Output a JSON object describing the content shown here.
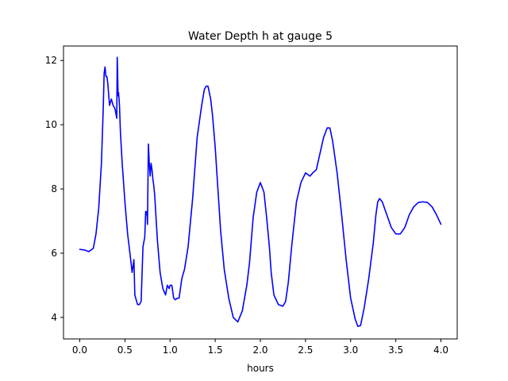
{
  "chart_data": {
    "type": "line",
    "title": "Water Depth h at gauge 5",
    "xlabel": "hours",
    "ylabel": "",
    "xlim": [
      -0.18,
      4.18
    ],
    "ylim": [
      3.33,
      12.45
    ],
    "xticks": [
      "0.0",
      "0.5",
      "1.0",
      "1.5",
      "2.0",
      "2.5",
      "3.0",
      "3.5",
      "4.0"
    ],
    "yticks": [
      "4",
      "6",
      "8",
      "10",
      "12"
    ],
    "grid": false,
    "legend": "none",
    "series": [
      {
        "color": "#0000ff",
        "x": [
          0.0,
          0.05,
          0.1,
          0.15,
          0.18,
          0.21,
          0.24,
          0.26,
          0.27,
          0.28,
          0.29,
          0.3,
          0.31,
          0.33,
          0.35,
          0.37,
          0.39,
          0.41,
          0.415,
          0.42,
          0.425,
          0.43,
          0.44,
          0.45,
          0.47,
          0.5,
          0.53,
          0.56,
          0.58,
          0.6,
          0.61,
          0.62,
          0.63,
          0.64,
          0.66,
          0.68,
          0.7,
          0.72,
          0.73,
          0.74,
          0.745,
          0.75,
          0.76,
          0.77,
          0.78,
          0.79,
          0.8,
          0.81,
          0.82,
          0.83,
          0.86,
          0.89,
          0.92,
          0.95,
          0.97,
          0.99,
          1.0,
          1.02,
          1.04,
          1.06,
          1.08,
          1.1,
          1.13,
          1.16,
          1.2,
          1.25,
          1.3,
          1.35,
          1.38,
          1.4,
          1.42,
          1.45,
          1.47,
          1.5,
          1.53,
          1.56,
          1.6,
          1.65,
          1.7,
          1.75,
          1.8,
          1.85,
          1.88,
          1.92,
          1.96,
          2.0,
          2.04,
          2.07,
          2.1,
          2.12,
          2.15,
          2.2,
          2.25,
          2.28,
          2.31,
          2.35,
          2.4,
          2.45,
          2.5,
          2.55,
          2.58,
          2.62,
          2.66,
          2.7,
          2.74,
          2.77,
          2.8,
          2.85,
          2.9,
          2.95,
          3.0,
          3.05,
          3.08,
          3.11,
          3.15,
          3.2,
          3.25,
          3.28,
          3.3,
          3.32,
          3.35,
          3.4,
          3.45,
          3.5,
          3.55,
          3.6,
          3.65,
          3.7,
          3.75,
          3.8,
          3.85,
          3.9,
          3.95,
          4.0
        ],
        "y": [
          6.12,
          6.1,
          6.05,
          6.15,
          6.6,
          7.4,
          8.8,
          10.5,
          11.6,
          11.8,
          11.5,
          11.5,
          11.3,
          10.6,
          10.8,
          10.6,
          10.5,
          10.2,
          12.1,
          11.5,
          10.9,
          11.0,
          10.6,
          9.8,
          8.8,
          7.6,
          6.6,
          5.9,
          5.4,
          5.8,
          4.7,
          4.6,
          4.5,
          4.4,
          4.4,
          4.5,
          6.2,
          6.5,
          7.3,
          7.2,
          7.3,
          6.9,
          9.4,
          8.8,
          8.4,
          8.8,
          8.6,
          8.3,
          8.1,
          7.8,
          6.4,
          5.4,
          4.9,
          4.7,
          5.0,
          4.9,
          5.0,
          5.0,
          4.6,
          4.55,
          4.6,
          4.6,
          5.2,
          5.5,
          6.2,
          7.7,
          9.6,
          10.6,
          11.1,
          11.2,
          11.2,
          10.8,
          10.3,
          9.3,
          8.0,
          6.7,
          5.5,
          4.6,
          4.0,
          3.86,
          4.2,
          5.0,
          5.7,
          7.1,
          7.9,
          8.2,
          7.9,
          7.1,
          6.2,
          5.4,
          4.7,
          4.4,
          4.35,
          4.5,
          5.1,
          6.3,
          7.6,
          8.2,
          8.5,
          8.4,
          8.5,
          8.6,
          9.1,
          9.6,
          9.9,
          9.9,
          9.5,
          8.5,
          7.2,
          5.8,
          4.6,
          3.95,
          3.72,
          3.75,
          4.3,
          5.2,
          6.3,
          7.2,
          7.6,
          7.7,
          7.6,
          7.2,
          6.8,
          6.6,
          6.6,
          6.8,
          7.2,
          7.45,
          7.58,
          7.6,
          7.58,
          7.45,
          7.2,
          6.9
        ]
      }
    ]
  }
}
